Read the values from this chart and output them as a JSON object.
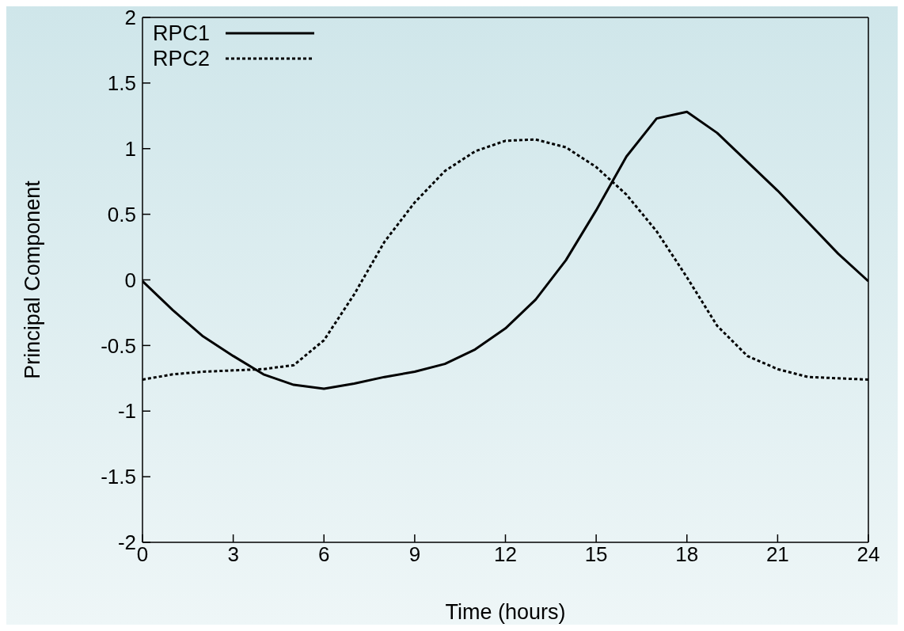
{
  "chart_data": {
    "type": "line",
    "xlabel": "Time (hours)",
    "ylabel": "Principal Component",
    "x": [
      0,
      1,
      2,
      3,
      4,
      5,
      6,
      7,
      8,
      9,
      10,
      11,
      12,
      13,
      14,
      15,
      16,
      17,
      18,
      19,
      20,
      21,
      22,
      23,
      24
    ],
    "series": [
      {
        "name": "RPC1",
        "color": "#000000",
        "line_style": "solid",
        "values": [
          -0.01,
          -0.23,
          -0.43,
          -0.58,
          -0.72,
          -0.8,
          -0.83,
          -0.79,
          -0.74,
          -0.7,
          -0.64,
          -0.53,
          -0.37,
          -0.15,
          0.15,
          0.53,
          0.94,
          1.23,
          1.28,
          1.12,
          0.9,
          0.68,
          0.44,
          0.2,
          -0.01
        ]
      },
      {
        "name": "RPC2",
        "color": "#000000",
        "line_style": "dotted",
        "values": [
          -0.76,
          -0.72,
          -0.7,
          -0.69,
          -0.68,
          -0.65,
          -0.46,
          -0.11,
          0.29,
          0.59,
          0.83,
          0.98,
          1.06,
          1.07,
          1.01,
          0.86,
          0.65,
          0.37,
          0.02,
          -0.35,
          -0.58,
          -0.68,
          -0.74,
          -0.75,
          -0.76
        ]
      }
    ],
    "xlim": [
      0,
      24
    ],
    "xticks": [
      0,
      3,
      6,
      9,
      12,
      15,
      18,
      21,
      24
    ],
    "ylim": [
      -2,
      2
    ],
    "yticks": [
      -2,
      -1.5,
      -1,
      -0.5,
      0,
      0.5,
      1,
      1.5,
      2
    ],
    "grid": false,
    "legend": "top left",
    "marker": "none"
  }
}
